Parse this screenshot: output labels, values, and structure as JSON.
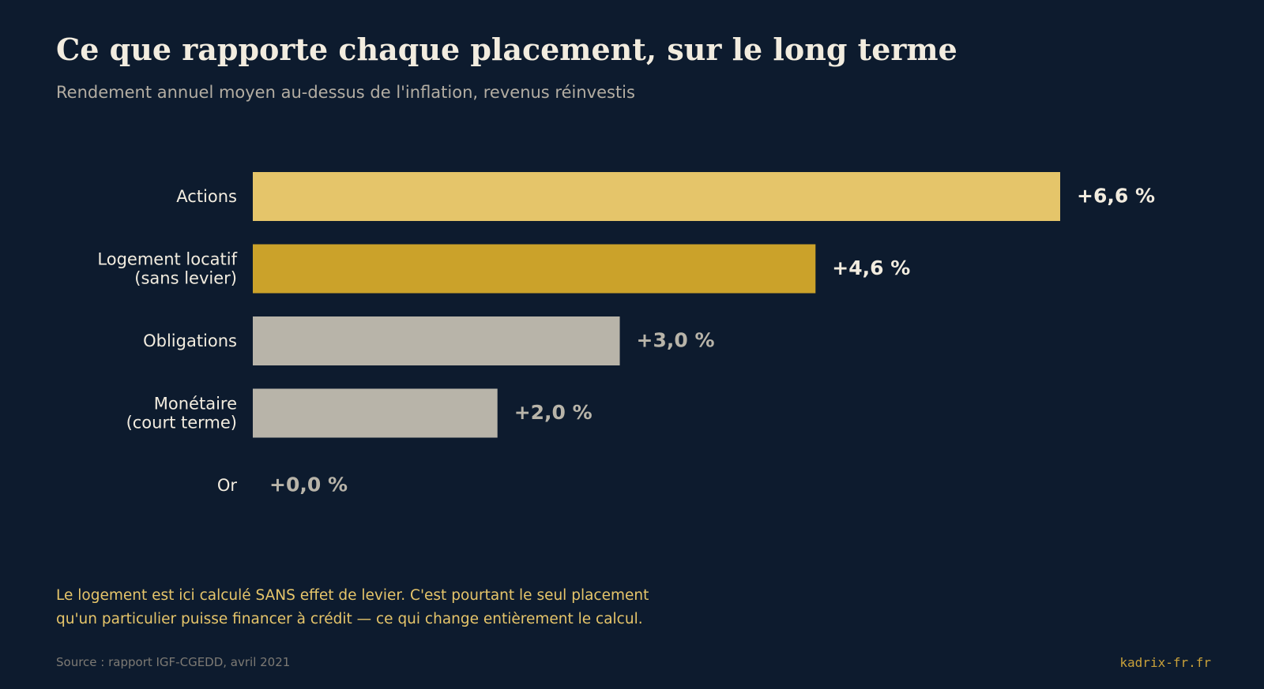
{
  "header": {
    "title": "Ce que rapporte chaque placement, sur le long terme",
    "subtitle": "Rendement annuel moyen au-dessus de l'inflation, revenus réinvestis"
  },
  "chart_data": {
    "type": "bar",
    "orientation": "horizontal",
    "categories": [
      [
        "Actions"
      ],
      [
        "Logement locatif",
        "(sans levier)"
      ],
      [
        "Obligations"
      ],
      [
        "Monétaire",
        "(court terme)"
      ],
      [
        "Or"
      ]
    ],
    "values": [
      6.6,
      4.6,
      3.0,
      2.0,
      0.0
    ],
    "value_labels": [
      "+6,6 %",
      "+4,6 %",
      "+3,0 %",
      "+2,0 %",
      "+0,0 %"
    ],
    "bar_colors": [
      "#e5c56a",
      "#cba22a",
      "#b8b4a9",
      "#b8b4a9",
      "#b8b4a9"
    ],
    "value_label_colors": [
      "#f2ecdf",
      "#f2ecdf",
      "#b8b4a9",
      "#b8b4a9",
      "#b8b4a9"
    ],
    "xlim": [
      0,
      6.6
    ],
    "grid": false,
    "legend": "none"
  },
  "footer": {
    "note_lines": [
      "Le logement est ici calculé SANS effet de levier. C'est pourtant le seul placement",
      "qu'un particulier puisse financer à crédit — ce qui change entièrement le calcul."
    ],
    "source": "Source : rapport IGF-CGEDD, avril 2021",
    "brand": "kadrix-fr.fr"
  },
  "colors": {
    "background": "#0d1b2e",
    "title": "#f2ecdf",
    "subtitle": "#b3ada2",
    "category_label": "#f2ecdf",
    "note": "#e6c56a",
    "source": "#7d7a74",
    "brand": "#c9a13a"
  }
}
